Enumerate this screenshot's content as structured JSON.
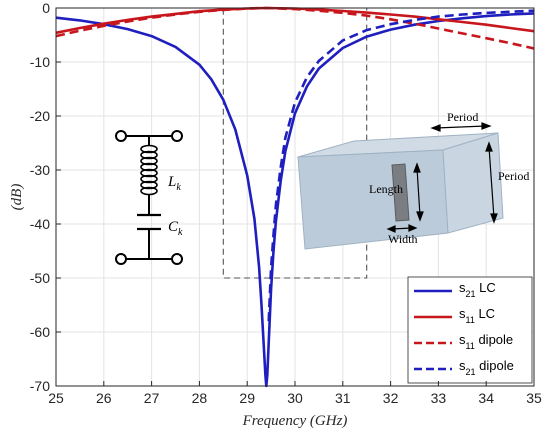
{
  "chart_data": {
    "type": "line",
    "xlabel": "Frequency (GHz)",
    "ylabel": "(dB)",
    "xlim": [
      25,
      35
    ],
    "ylim": [
      -70,
      0
    ],
    "xticks": [
      "25",
      "26",
      "27",
      "28",
      "29",
      "30",
      "31",
      "32",
      "33",
      "34",
      "35"
    ],
    "yticks": [
      "0",
      "-10",
      "-20",
      "-30",
      "-40",
      "-50",
      "-60",
      "-70"
    ],
    "grid": true,
    "legend_position": "bottom-right",
    "series": [
      {
        "name": "s21 LC",
        "label_main": "s",
        "label_sub": "21",
        "label_suffix": " LC",
        "color": "#1f1fbf",
        "style": "solid",
        "x": [
          25,
          25.5,
          26,
          26.5,
          27,
          27.5,
          28,
          28.25,
          28.5,
          28.75,
          29,
          29.15,
          29.25,
          29.3,
          29.35,
          29.38,
          29.4,
          29.42,
          29.45,
          29.5,
          29.55,
          29.6,
          29.7,
          29.8,
          30,
          30.25,
          30.5,
          31,
          31.5,
          32,
          32.5,
          33,
          33.5,
          34,
          34.5,
          35
        ],
        "y": [
          -1.8,
          -2.3,
          -3.0,
          -3.9,
          -5.2,
          -7.2,
          -10.5,
          -13.2,
          -17.0,
          -22.5,
          -31.0,
          -39.0,
          -48.0,
          -55.0,
          -63.0,
          -68.0,
          -70.0,
          -68.0,
          -62.0,
          -52.0,
          -45.0,
          -39.5,
          -32.0,
          -26.5,
          -19.5,
          -14.5,
          -11.2,
          -7.4,
          -5.3,
          -4.0,
          -3.1,
          -2.4,
          -1.9,
          -1.5,
          -1.2,
          -1.0
        ]
      },
      {
        "name": "s11 LC",
        "label_main": "s",
        "label_sub": "11",
        "label_suffix": " LC",
        "color": "#c8161d",
        "style": "solid",
        "x": [
          25,
          25.5,
          26,
          26.5,
          27,
          27.5,
          28,
          28.5,
          29,
          29.4,
          30,
          30.5,
          31,
          31.5,
          32,
          32.5,
          33,
          33.5,
          34,
          34.5,
          35
        ],
        "y": [
          -4.6,
          -3.7,
          -2.9,
          -2.2,
          -1.6,
          -1.1,
          -0.6,
          -0.3,
          -0.1,
          0.0,
          -0.1,
          -0.3,
          -0.55,
          -0.85,
          -1.2,
          -1.6,
          -2.1,
          -2.6,
          -3.1,
          -3.7,
          -4.3
        ]
      },
      {
        "name": "s11 dipole",
        "label_main": "s",
        "label_sub": "11",
        "label_suffix": " dipole",
        "color": "#c8161d",
        "style": "dashed",
        "x": [
          25,
          25.5,
          26,
          26.5,
          27,
          27.5,
          28,
          28.5,
          29,
          29.4,
          30,
          30.5,
          31,
          31.5,
          32,
          32.5,
          33,
          33.5,
          34,
          34.5,
          35
        ],
        "y": [
          -5.2,
          -4.2,
          -3.3,
          -2.5,
          -1.8,
          -1.2,
          -0.7,
          -0.35,
          -0.1,
          0.0,
          -0.2,
          -0.5,
          -0.9,
          -1.4,
          -2.1,
          -2.9,
          -3.8,
          -4.7,
          -5.6,
          -6.5,
          -7.5
        ]
      },
      {
        "name": "s21 dipole",
        "label_main": "s",
        "label_sub": "21",
        "label_suffix": " dipole",
        "color": "#1f1fbf",
        "style": "dashed",
        "x": [
          29.45,
          29.5,
          29.55,
          29.6,
          29.7,
          29.8,
          30,
          30.25,
          30.5,
          31,
          31.5,
          32,
          32.5,
          33,
          33.5,
          34,
          34.5,
          35
        ],
        "y": [
          -58.0,
          -48.0,
          -42.0,
          -36.5,
          -29.5,
          -24.0,
          -17.5,
          -12.8,
          -9.8,
          -6.0,
          -4.1,
          -3.0,
          -2.2,
          -1.6,
          -1.2,
          -0.9,
          -0.7,
          -0.5
        ]
      }
    ],
    "zoom_box": {
      "x": [
        28.5,
        31.5
      ],
      "y": [
        -50,
        0
      ]
    },
    "annotations": {
      "inductor_label": "L",
      "inductor_sub": "k",
      "capacitor_label": "C",
      "capacitor_sub": "k",
      "period_top": "Period",
      "period_right": "Period",
      "length": "Length",
      "width": "Width"
    }
  }
}
